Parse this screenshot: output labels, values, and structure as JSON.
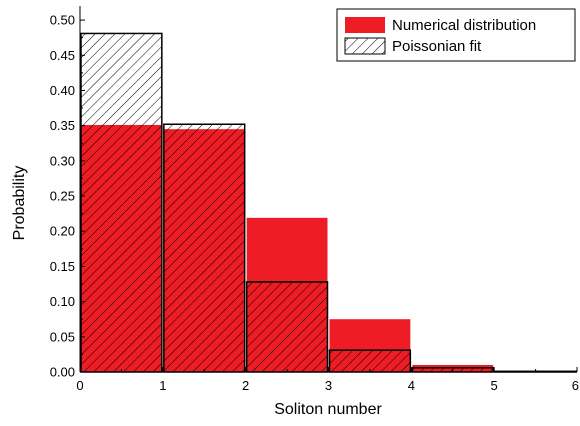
{
  "chart_data": {
    "type": "bar",
    "xlabel": "Soliton number",
    "ylabel": "Probability",
    "xlim": [
      0,
      6
    ],
    "ylim": [
      0,
      0.52
    ],
    "x_ticks": [
      "0",
      "1",
      "2",
      "3",
      "4",
      "5",
      "6"
    ],
    "y_ticks": [
      "0.00",
      "0.05",
      "0.10",
      "0.15",
      "0.20",
      "0.25",
      "0.30",
      "0.35",
      "0.40",
      "0.45",
      "0.50"
    ],
    "bins": [
      [
        0,
        1
      ],
      [
        1,
        2
      ],
      [
        2,
        3
      ],
      [
        3,
        4
      ],
      [
        4,
        5
      ],
      [
        5,
        6
      ]
    ],
    "series": [
      {
        "name": "Numerical distribution",
        "style": "solid-fill",
        "color": "#ee1c25",
        "values": [
          0.351,
          0.345,
          0.219,
          0.075,
          0.01,
          0.0
        ]
      },
      {
        "name": "Poissonian fit",
        "style": "hatched",
        "color": "#000000",
        "values": [
          0.481,
          0.352,
          0.128,
          0.031,
          0.006,
          0.001
        ]
      }
    ],
    "legend_position": "top-right",
    "grid": false
  }
}
